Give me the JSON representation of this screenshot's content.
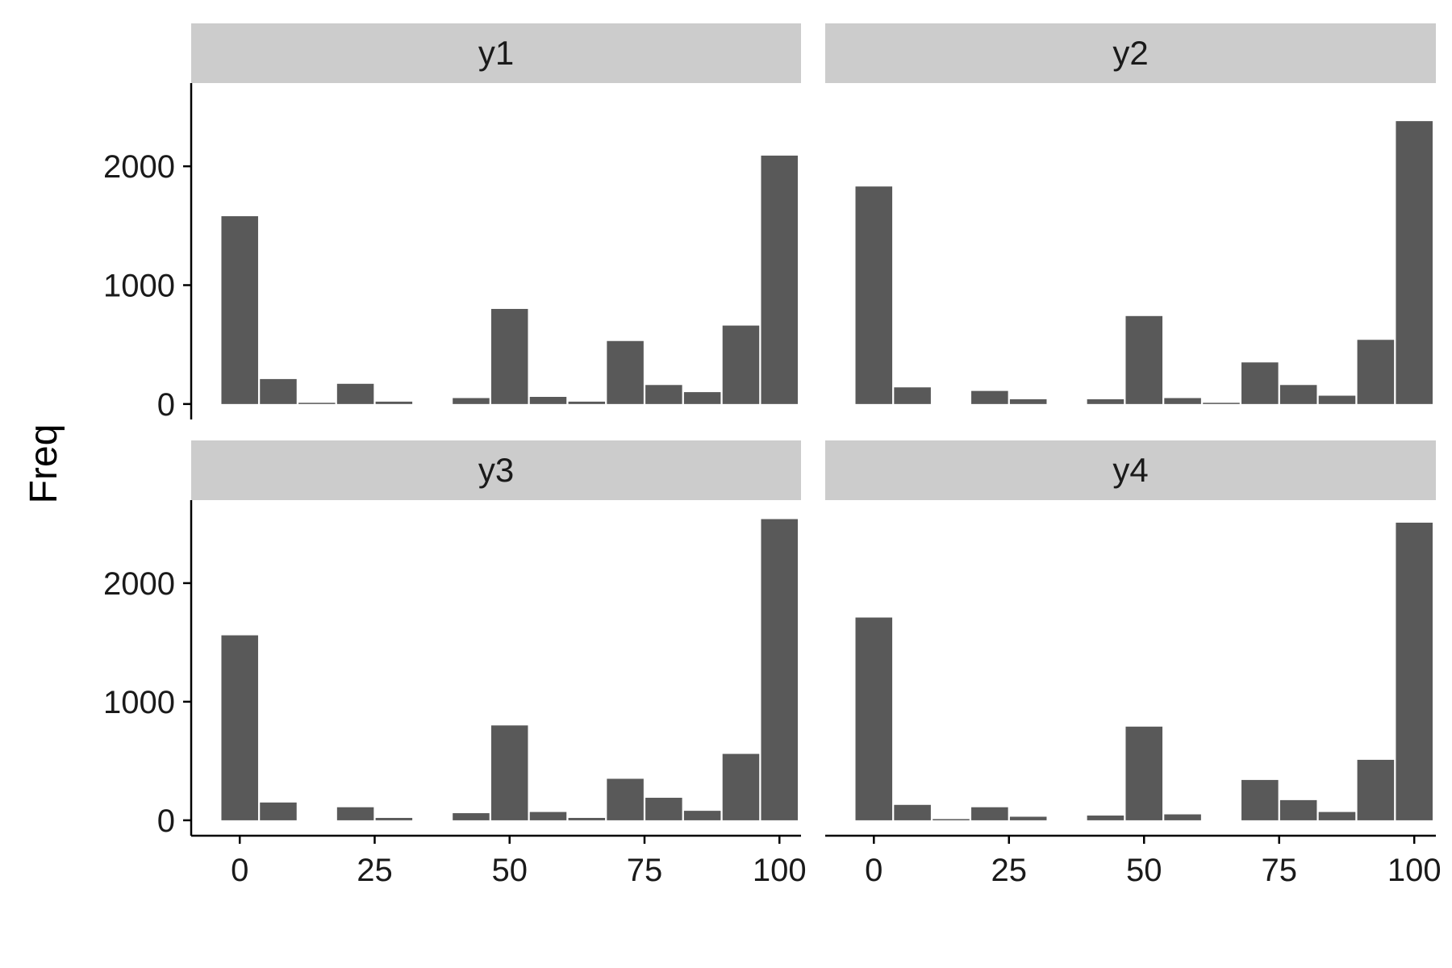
{
  "chart_data": {
    "type": "bar",
    "ylabel": "Freq",
    "xlabel": "",
    "bar_color": "#595959",
    "strip_color": "#cccccc",
    "x_ticks": [
      0,
      25,
      50,
      75,
      100
    ],
    "y_ticks": [
      0,
      1000,
      2000
    ],
    "xlim": [
      -9,
      104
    ],
    "ylim": [
      -130,
      2700
    ],
    "bin_width": 7.1,
    "x": [
      0,
      7.14,
      14.29,
      21.43,
      28.57,
      35.71,
      42.86,
      50,
      57.14,
      64.29,
      71.43,
      78.57,
      85.71,
      92.86,
      100
    ],
    "panels": [
      {
        "name": "y1",
        "values": [
          1580,
          210,
          10,
          170,
          20,
          0,
          50,
          800,
          60,
          20,
          530,
          160,
          100,
          660,
          2090
        ]
      },
      {
        "name": "y2",
        "values": [
          1830,
          140,
          0,
          110,
          40,
          0,
          40,
          740,
          50,
          10,
          350,
          160,
          70,
          540,
          2380
        ]
      },
      {
        "name": "y3",
        "values": [
          1560,
          150,
          0,
          110,
          20,
          0,
          60,
          800,
          70,
          20,
          350,
          190,
          80,
          560,
          2540
        ]
      },
      {
        "name": "y4",
        "values": [
          1710,
          130,
          10,
          110,
          30,
          0,
          40,
          790,
          50,
          0,
          340,
          170,
          70,
          510,
          2510
        ]
      }
    ]
  }
}
